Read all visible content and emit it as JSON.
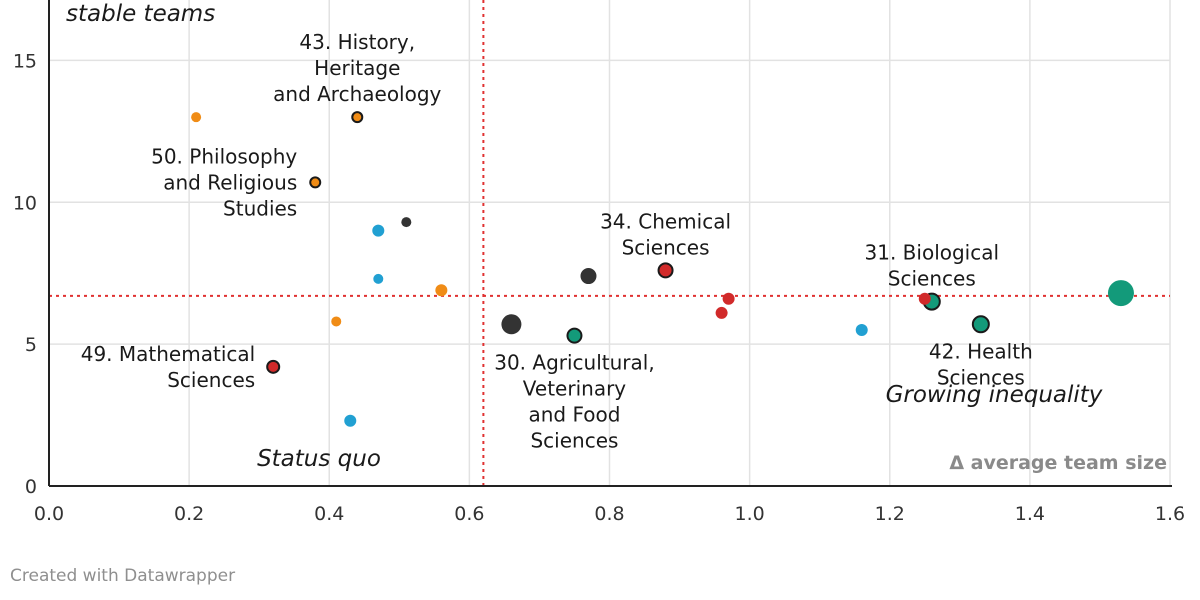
{
  "chart_data": {
    "type": "scatter",
    "x_axis": {
      "label": "Δ average team size",
      "range": [
        0,
        1.6
      ],
      "ticks": [
        "0.0",
        "0.2",
        "0.4",
        "0.6",
        "0.8",
        "1.0",
        "1.2",
        "1.4",
        "1.6"
      ],
      "tick_values": [
        0,
        0.2,
        0.4,
        0.6,
        0.8,
        1.0,
        1.2,
        1.4,
        1.6
      ]
    },
    "y_axis": {
      "range": [
        0,
        17.2
      ],
      "ticks": [
        "0",
        "5",
        "10",
        "15"
      ],
      "tick_values": [
        0,
        5,
        10,
        15
      ]
    },
    "reference_lines": {
      "x": 0.62,
      "y": 6.7,
      "color": "#e03131"
    },
    "quadrant_labels": [
      {
        "text": "stable teams"
      },
      {
        "text": "Status quo"
      },
      {
        "text": "Growing inequality"
      }
    ],
    "colors": {
      "orange": "#f08c16",
      "blue": "#21a0d2",
      "dark": "#333333",
      "red": "#d12a2a",
      "green": "#139a7a"
    },
    "points": [
      {
        "x": 0.21,
        "y": 13.0,
        "size": 5,
        "color": "orange",
        "outline": false
      },
      {
        "x": 0.44,
        "y": 13.0,
        "size": 5,
        "color": "orange",
        "outline": true
      },
      {
        "x": 0.38,
        "y": 10.7,
        "size": 5,
        "color": "orange",
        "outline": true
      },
      {
        "x": 0.51,
        "y": 9.3,
        "size": 5,
        "color": "dark",
        "outline": false
      },
      {
        "x": 0.47,
        "y": 9.0,
        "size": 6,
        "color": "blue",
        "outline": false
      },
      {
        "x": 0.47,
        "y": 7.3,
        "size": 5,
        "color": "blue",
        "outline": false
      },
      {
        "x": 0.56,
        "y": 6.9,
        "size": 6,
        "color": "orange",
        "outline": false
      },
      {
        "x": 0.41,
        "y": 5.8,
        "size": 5,
        "color": "orange",
        "outline": false
      },
      {
        "x": 0.32,
        "y": 4.2,
        "size": 6,
        "color": "red",
        "outline": true
      },
      {
        "x": 0.43,
        "y": 2.3,
        "size": 6,
        "color": "blue",
        "outline": false
      },
      {
        "x": 0.66,
        "y": 5.7,
        "size": 10,
        "color": "dark",
        "outline": false
      },
      {
        "x": 0.75,
        "y": 5.3,
        "size": 7,
        "color": "green",
        "outline": true
      },
      {
        "x": 0.77,
        "y": 7.4,
        "size": 8,
        "color": "dark",
        "outline": false
      },
      {
        "x": 0.88,
        "y": 7.6,
        "size": 7,
        "color": "red",
        "outline": true
      },
      {
        "x": 0.97,
        "y": 6.6,
        "size": 6,
        "color": "red",
        "outline": false
      },
      {
        "x": 0.96,
        "y": 6.1,
        "size": 6,
        "color": "red",
        "outline": false
      },
      {
        "x": 1.16,
        "y": 5.5,
        "size": 6,
        "color": "blue",
        "outline": false
      },
      {
        "x": 1.25,
        "y": 6.6,
        "size": 6,
        "color": "red",
        "outline": false
      },
      {
        "x": 1.26,
        "y": 6.5,
        "size": 8,
        "color": "green",
        "outline": true
      },
      {
        "x": 1.33,
        "y": 5.7,
        "size": 8,
        "color": "green",
        "outline": true
      },
      {
        "x": 1.53,
        "y": 6.8,
        "size": 13,
        "color": "green",
        "outline": false
      }
    ],
    "annotations": [
      {
        "lines": [
          "43. History,",
          "Heritage",
          "and Archaeology"
        ],
        "x": 0.44,
        "y": 13.0,
        "place": "above"
      },
      {
        "lines": [
          "50. Philosophy",
          "and Religious",
          "Studies"
        ],
        "x": 0.38,
        "y": 10.7,
        "place": "left"
      },
      {
        "lines": [
          "34. Chemical",
          "Sciences"
        ],
        "x": 0.88,
        "y": 7.6,
        "place": "above"
      },
      {
        "lines": [
          "31. Biological",
          "Sciences"
        ],
        "x": 1.26,
        "y": 6.5,
        "place": "above"
      },
      {
        "lines": [
          "49. Mathematical",
          "Sciences"
        ],
        "x": 0.32,
        "y": 4.2,
        "place": "left"
      },
      {
        "lines": [
          "30. Agricultural,",
          "Veterinary",
          "and Food",
          "Sciences"
        ],
        "x": 0.75,
        "y": 5.3,
        "place": "below"
      },
      {
        "lines": [
          "42. Health",
          "Sciences"
        ],
        "x": 1.33,
        "y": 5.7,
        "place": "below"
      }
    ]
  },
  "footer": {
    "credit": "Created with Datawrapper"
  }
}
